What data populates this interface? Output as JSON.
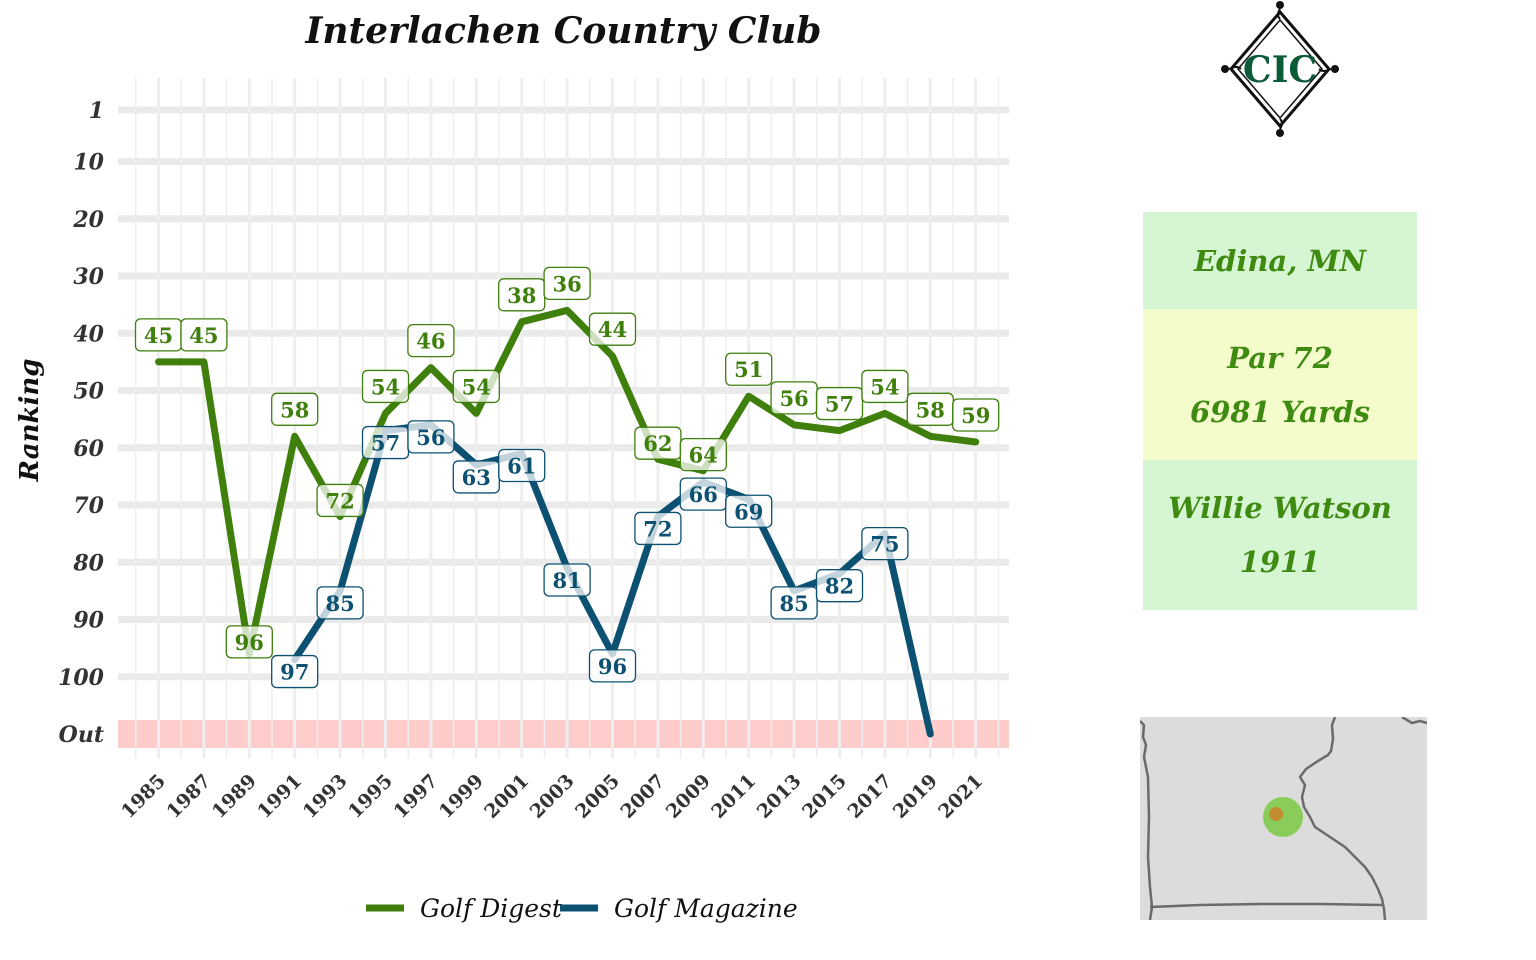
{
  "title": "Interlachen Country Club",
  "info": {
    "location": "Edina, MN",
    "par": "Par 72",
    "yards": "6981 Yards",
    "architect": "Willie Watson",
    "year": "1911"
  },
  "logo_text": "CIC",
  "colors": {
    "golf_digest": "#3f7f0c",
    "golf_magazine": "#0d5172",
    "out_band": "#ffcccc",
    "grid": "#ebebeb",
    "info_green": "#d6f5d2",
    "info_yellow": "#f5fccb",
    "text_green": "#3f8a10"
  },
  "chart_data": {
    "type": "line",
    "title": "Interlachen Country Club",
    "xlabel": "",
    "ylabel": "Ranking",
    "y_reversed": true,
    "y_ticks": [
      "1",
      "10",
      "20",
      "30",
      "40",
      "50",
      "60",
      "70",
      "80",
      "90",
      "100",
      "Out"
    ],
    "y_tick_values": [
      1,
      10,
      20,
      30,
      40,
      50,
      60,
      70,
      80,
      90,
      100,
      110
    ],
    "x_ticks": [
      1985,
      1987,
      1989,
      1991,
      1993,
      1995,
      1997,
      1999,
      2001,
      2003,
      2005,
      2007,
      2009,
      2011,
      2013,
      2015,
      2017,
      2019,
      2021
    ],
    "xlim": [
      1984,
      2023
    ],
    "ylim": [
      1,
      110
    ],
    "out_band": "Out",
    "legend_position": "bottom",
    "series": [
      {
        "name": "Golf Digest",
        "color": "#3f7f0c",
        "points": [
          {
            "x": 1985,
            "y": 45,
            "label": "45"
          },
          {
            "x": 1987,
            "y": 45,
            "label": "45"
          },
          {
            "x": 1989,
            "y": 96,
            "label": "96"
          },
          {
            "x": 1991,
            "y": 58,
            "label": "58"
          },
          {
            "x": 1993,
            "y": 72,
            "label": "72"
          },
          {
            "x": 1995,
            "y": 54,
            "label": "54"
          },
          {
            "x": 1997,
            "y": 46,
            "label": "46"
          },
          {
            "x": 1999,
            "y": 54,
            "label": "54"
          },
          {
            "x": 2001,
            "y": 38,
            "label": "38"
          },
          {
            "x": 2003,
            "y": 36,
            "label": "36"
          },
          {
            "x": 2005,
            "y": 44,
            "label": "44"
          },
          {
            "x": 2007,
            "y": 62,
            "label": "62"
          },
          {
            "x": 2009,
            "y": 64,
            "label": "64"
          },
          {
            "x": 2011,
            "y": 51,
            "label": "51"
          },
          {
            "x": 2013,
            "y": 56,
            "label": "56"
          },
          {
            "x": 2015,
            "y": 57,
            "label": "57"
          },
          {
            "x": 2017,
            "y": 54,
            "label": "54"
          },
          {
            "x": 2019,
            "y": 58,
            "label": "58"
          },
          {
            "x": 2021,
            "y": 59,
            "label": "59"
          }
        ]
      },
      {
        "name": "Golf Magazine",
        "color": "#0d5172",
        "points": [
          {
            "x": 1991,
            "y": 97,
            "label": "97"
          },
          {
            "x": 1993,
            "y": 85,
            "label": "85"
          },
          {
            "x": 1995,
            "y": 57,
            "label": "57"
          },
          {
            "x": 1997,
            "y": 56,
            "label": "56"
          },
          {
            "x": 1999,
            "y": 63,
            "label": "63"
          },
          {
            "x": 2001,
            "y": 61,
            "label": "61"
          },
          {
            "x": 2003,
            "y": 81,
            "label": "81"
          },
          {
            "x": 2005,
            "y": 96,
            "label": "96"
          },
          {
            "x": 2007,
            "y": 72,
            "label": "72"
          },
          {
            "x": 2009,
            "y": 66,
            "label": "66"
          },
          {
            "x": 2011,
            "y": 69,
            "label": "69"
          },
          {
            "x": 2013,
            "y": 85,
            "label": "85"
          },
          {
            "x": 2015,
            "y": 82,
            "label": "82"
          },
          {
            "x": 2017,
            "y": 75,
            "label": "75"
          },
          {
            "x": 2019,
            "y": 110
          }
        ]
      }
    ]
  }
}
